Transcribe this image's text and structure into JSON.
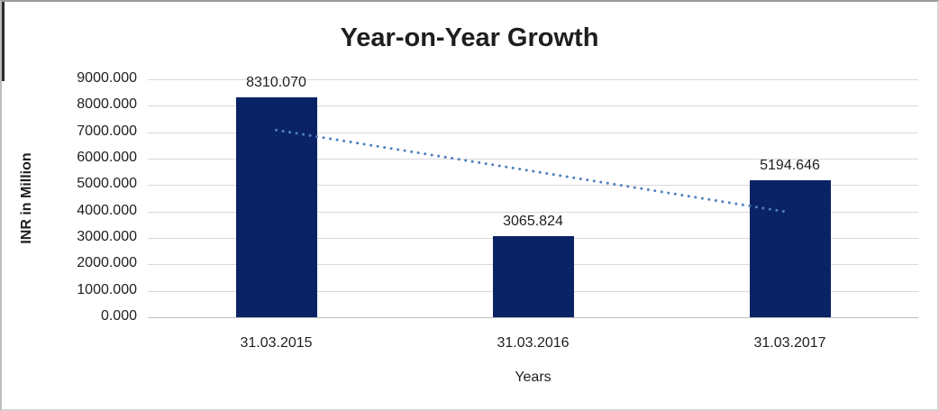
{
  "chart_data": {
    "type": "bar",
    "title": "Year-on-Year Growth",
    "xlabel": "Years",
    "ylabel": "INR in Million",
    "categories": [
      "31.03.2015",
      "31.03.2016",
      "31.03.2017"
    ],
    "values": [
      8310.07,
      3065.824,
      5194.646
    ],
    "data_labels": [
      "8310.070",
      "3065.824",
      "5194.646"
    ],
    "ylim": [
      0,
      9000
    ],
    "ytick_step": 1000,
    "ytick_labels": [
      "0.000",
      "1000.000",
      "2000.000",
      "3000.000",
      "4000.000",
      "5000.000",
      "6000.000",
      "7000.000",
      "8000.000",
      "9000.000"
    ],
    "grid": true,
    "legend": "none",
    "colors": {
      "bar": "#0a2365",
      "trendline": "#4f81bd",
      "gridline": "#d9d9d9",
      "text": "#1e1e1e"
    },
    "trendline": {
      "kind": "linear",
      "line_style": "dotted",
      "start_value": 7081.2,
      "end_value": 3965.8,
      "spans_categories": [
        0,
        2
      ]
    }
  }
}
